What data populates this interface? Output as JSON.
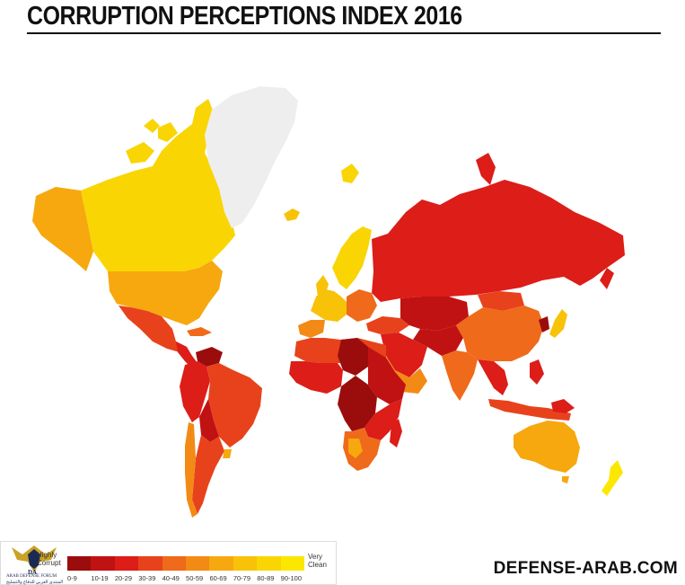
{
  "title": "CORRUPTION PERCEPTIONS INDEX 2016",
  "legend": {
    "low_label_line1": "Highly",
    "low_label_line2": "Corrupt",
    "high_label_line1": "Very",
    "high_label_line2": "Clean",
    "bins": [
      {
        "label": "0-9",
        "color": "#9b0d0d"
      },
      {
        "label": "10-19",
        "color": "#c01212"
      },
      {
        "label": "20-29",
        "color": "#dc1d18"
      },
      {
        "label": "30-39",
        "color": "#e8421c"
      },
      {
        "label": "40-49",
        "color": "#ef6a1a"
      },
      {
        "label": "50-59",
        "color": "#f38a15"
      },
      {
        "label": "60-69",
        "color": "#f6a80e"
      },
      {
        "label": "70-79",
        "color": "#f8c209"
      },
      {
        "label": "80-89",
        "color": "#f9d504"
      },
      {
        "label": "90-100",
        "color": "#fbe700"
      }
    ]
  },
  "logo": {
    "line1": "ARAB DEFENSE FORUM",
    "line2": "المنتدى العربي للدفاع والتسليح"
  },
  "brand": "DEFENSE-ARAB.COM",
  "no_data_color": "#eeeeee"
}
